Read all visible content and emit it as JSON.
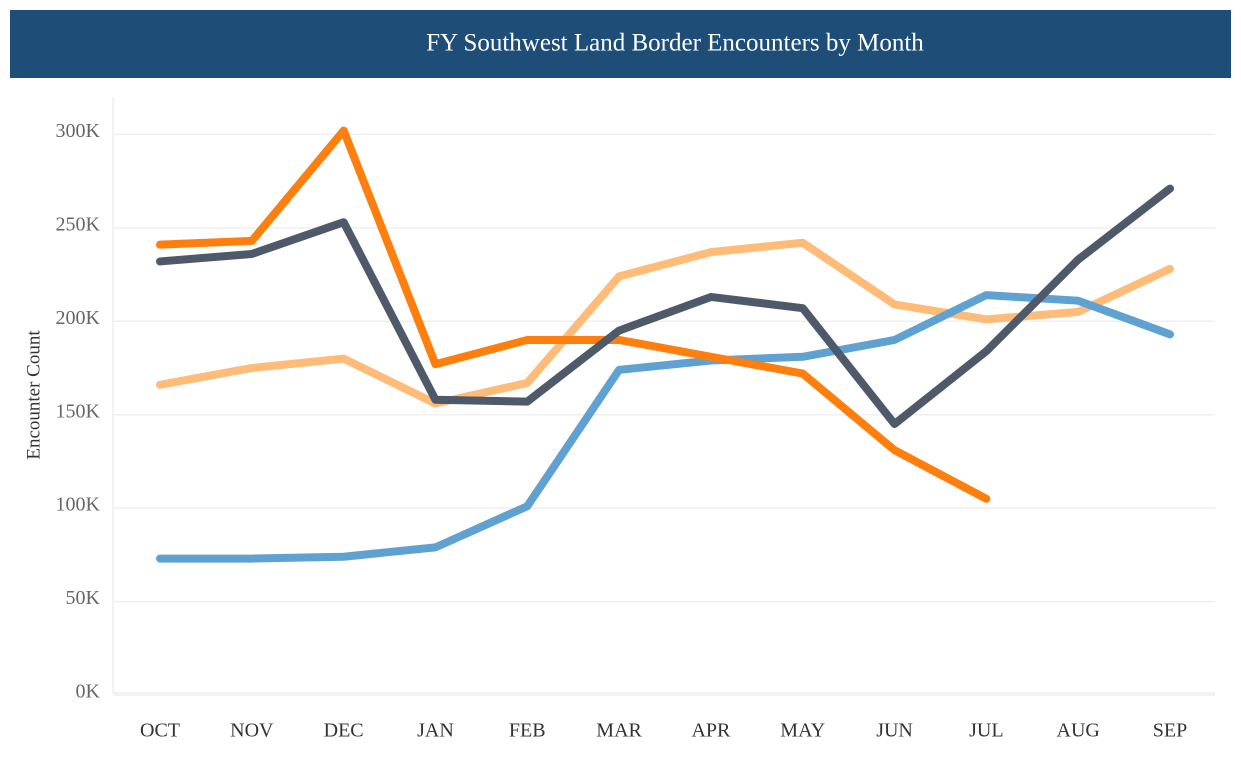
{
  "chart_data": {
    "type": "line",
    "title": "FY Southwest Land Border Encounters by Month",
    "ylabel": "Encounter Count",
    "categories": [
      "OCT",
      "NOV",
      "DEC",
      "JAN",
      "FEB",
      "MAR",
      "APR",
      "MAY",
      "JUN",
      "JUL",
      "AUG",
      "SEP"
    ],
    "series": [
      {
        "color": "#ffbb78",
        "values": [
          166000,
          175000,
          180000,
          156000,
          167000,
          224000,
          237000,
          242000,
          209000,
          201000,
          205000,
          228000
        ]
      },
      {
        "color": "#5fa2d1",
        "values": [
          73000,
          73000,
          74000,
          79000,
          101000,
          174000,
          179000,
          181000,
          190000,
          214000,
          211000,
          193000
        ]
      },
      {
        "color": "#ff7f0e",
        "values": [
          241000,
          243000,
          302000,
          177000,
          190000,
          190000,
          181000,
          172000,
          131000,
          105000,
          null,
          null
        ]
      },
      {
        "color": "#4e5969",
        "values": [
          232000,
          236000,
          253000,
          158000,
          157000,
          195000,
          213000,
          207000,
          145000,
          184000,
          233000,
          271000
        ]
      }
    ],
    "ylim": [
      0,
      320000
    ],
    "yticks": [
      {
        "value": 0,
        "label": "0K"
      },
      {
        "value": 50000,
        "label": "50K"
      },
      {
        "value": 100000,
        "label": "100K"
      },
      {
        "value": 150000,
        "label": "150K"
      },
      {
        "value": 200000,
        "label": "200K"
      },
      {
        "value": 250000,
        "label": "250K"
      },
      {
        "value": 300000,
        "label": "300K"
      }
    ],
    "grid": true
  }
}
